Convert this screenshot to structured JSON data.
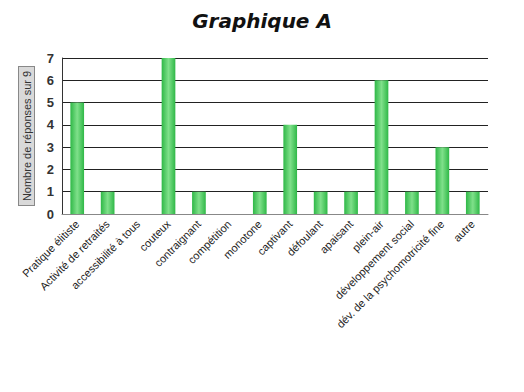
{
  "chart_data": {
    "type": "bar",
    "title": "Graphique A",
    "y_label": "Nombre de réponses sur 9",
    "categories": [
      "Pratique élitiste",
      "Activité de retraités",
      "accessibilité à tous",
      "couteux",
      "contraignant",
      "compétition",
      "monotone",
      "captivant",
      "défoulant",
      "apaisant",
      "plein-air",
      "développement social",
      "dév. de la psychomotricité fine",
      "autre"
    ],
    "values": [
      5,
      1,
      0,
      7,
      1,
      0,
      1,
      4,
      1,
      1,
      6,
      1,
      3,
      1
    ],
    "color": "#2fb847",
    "ylim": [
      0,
      7
    ],
    "yticks": [
      0,
      1,
      2,
      3,
      4,
      5,
      6,
      7
    ],
    "grid": true
  }
}
